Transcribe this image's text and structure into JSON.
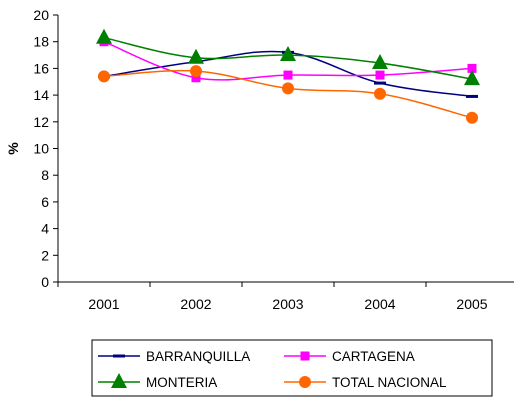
{
  "chart_data": {
    "type": "line",
    "title": "",
    "xlabel": "",
    "ylabel": "%",
    "ylim": [
      0,
      20
    ],
    "ytick_step": 2,
    "categories": [
      "2001",
      "2002",
      "2003",
      "2004",
      "2005"
    ],
    "grid": false,
    "legend_position": "bottom",
    "series": [
      {
        "name": "BARRANQUILLA",
        "values": [
          15.4,
          16.5,
          17.2,
          14.9,
          13.9
        ],
        "color": "#000080",
        "marker": "dash"
      },
      {
        "name": "CARTAGENA",
        "values": [
          18.0,
          15.3,
          15.5,
          15.5,
          16.0
        ],
        "color": "#FF00FF",
        "marker": "square"
      },
      {
        "name": "MONTERIA",
        "values": [
          18.3,
          16.8,
          17.0,
          16.4,
          15.2
        ],
        "color": "#008000",
        "marker": "triangle"
      },
      {
        "name": "TOTAL NACIONAL",
        "values": [
          15.4,
          15.8,
          14.5,
          14.1,
          12.3
        ],
        "color": "#FF6600",
        "marker": "circle"
      }
    ]
  }
}
